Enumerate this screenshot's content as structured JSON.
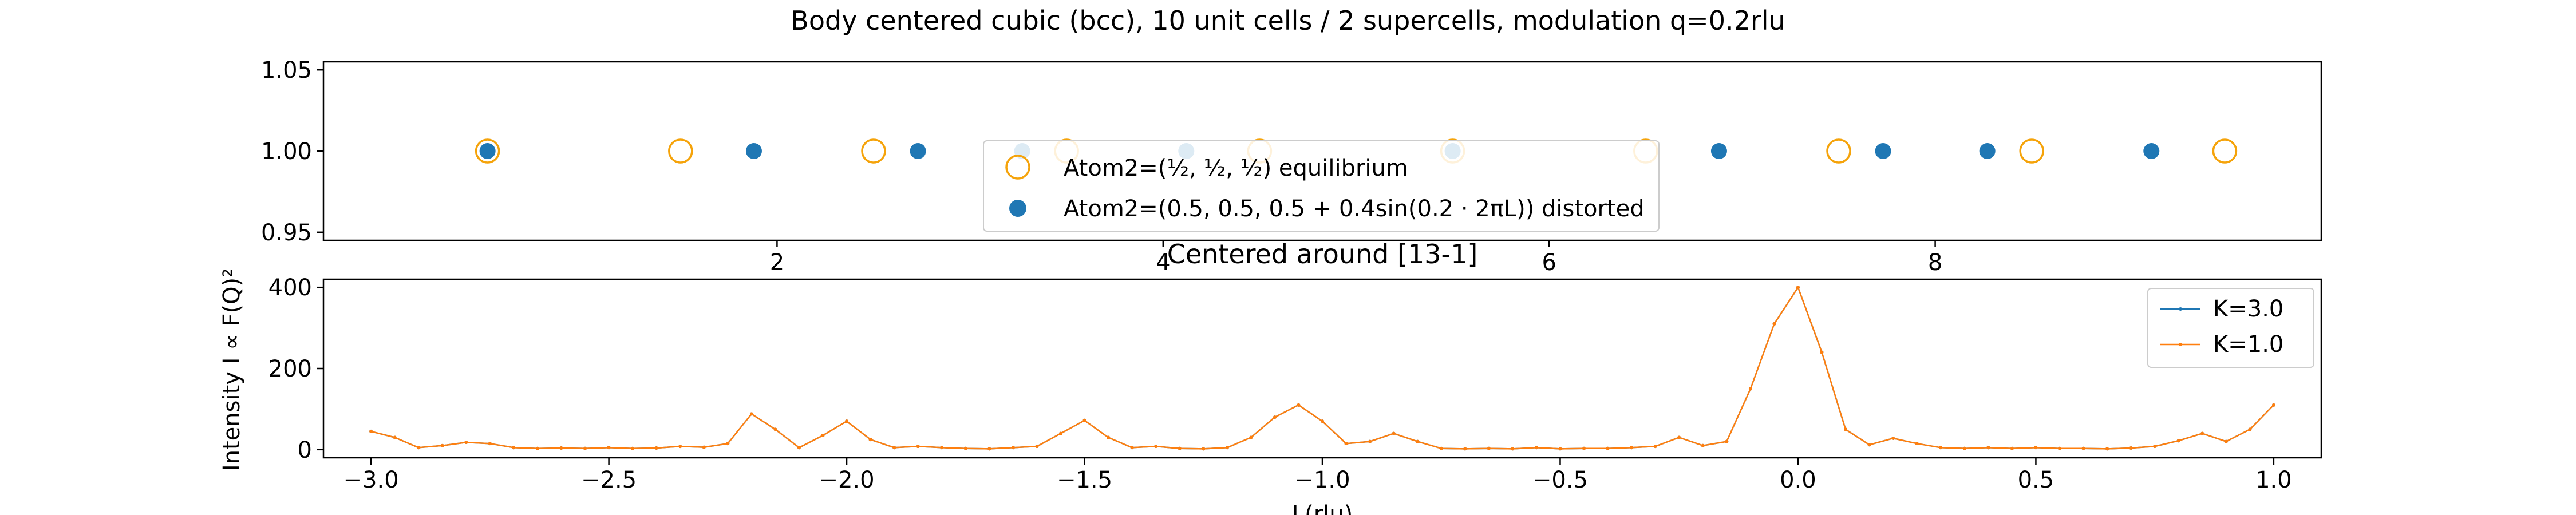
{
  "suptitle": "Body centered cubic (bcc), 10 unit cells / 2 supercells, modulation q=0.2rlu",
  "colors": {
    "orange": "#f5a30a",
    "blue": "#1f77b4",
    "line_blue": "#1f77b4",
    "line_orange": "#ff7f0e"
  },
  "chart_data": [
    {
      "type": "scatter",
      "title": "",
      "xlabel": "",
      "ylabel": "",
      "xlim": [
        -0.35,
        10.0
      ],
      "ylim": [
        0.945,
        1.055
      ],
      "xticks": [
        2,
        4,
        6,
        8
      ],
      "yticks": [
        "0.95",
        "1.00",
        "1.05"
      ],
      "legend_position": "lower-center",
      "series": [
        {
          "name_prefix": "Atom2=(",
          "name_suffix": ") equilibrium",
          "marker": "open-circle",
          "x": [
            0.5,
            1.5,
            2.5,
            3.5,
            4.5,
            5.5,
            6.5,
            7.5,
            8.5,
            9.5
          ],
          "y": [
            1,
            1,
            1,
            1,
            1,
            1,
            1,
            1,
            1,
            1
          ]
        },
        {
          "name": "Atom2=(0.5, 0.5, 0.5 + 0.4sin(0.2 · 2πL)) distorted",
          "marker": "filled-circle",
          "x": [
            0.5,
            1.88,
            2.73,
            3.27,
            4.12,
            5.5,
            6.88,
            7.73,
            8.27,
            9.12
          ],
          "y": [
            1,
            1,
            1,
            1,
            1,
            1,
            1,
            1,
            1,
            1
          ]
        }
      ]
    },
    {
      "type": "line",
      "title": "Centered around [13-1]",
      "xlabel": "L(rlu)",
      "ylabel": "Intensity I ∝ F(Q)²",
      "xlim": [
        -3.1,
        1.1
      ],
      "ylim": [
        -20,
        420
      ],
      "xticks": [
        "−3.0",
        "−2.5",
        "−2.0",
        "−1.5",
        "−1.0",
        "−0.5",
        "0.0",
        "0.5",
        "1.0"
      ],
      "xtick_values": [
        -3.0,
        -2.5,
        -2.0,
        -1.5,
        -1.0,
        -0.5,
        0.0,
        0.5,
        1.0
      ],
      "yticks": [
        "0",
        "200",
        "400"
      ],
      "ytick_values": [
        0,
        200,
        400
      ],
      "legend_position": "upper-right",
      "series": [
        {
          "name": "K=3.0",
          "x": [
            -3.0,
            -2.95,
            -2.9,
            -2.85,
            -2.8,
            -2.75,
            -2.7,
            -2.65,
            -2.6,
            -2.55,
            -2.5,
            -2.45,
            -2.4,
            -2.35,
            -2.3,
            -2.25,
            -2.2,
            -2.15,
            -2.1,
            -2.05,
            -2.0,
            -1.95,
            -1.9,
            -1.85,
            -1.8,
            -1.75,
            -1.7,
            -1.65,
            -1.6,
            -1.55,
            -1.5,
            -1.45,
            -1.4,
            -1.35,
            -1.3,
            -1.25,
            -1.2,
            -1.15,
            -1.1,
            -1.05,
            -1.0,
            -0.95,
            -0.9,
            -0.85,
            -0.8,
            -0.75,
            -0.7,
            -0.65,
            -0.6,
            -0.55,
            -0.5,
            -0.45,
            -0.4,
            -0.35,
            -0.3,
            -0.25,
            -0.2,
            -0.15,
            -0.1,
            -0.05,
            0.0,
            0.05,
            0.1,
            0.15,
            0.2,
            0.25,
            0.3,
            0.35,
            0.4,
            0.45,
            0.5,
            0.55,
            0.6,
            0.65,
            0.7,
            0.75,
            0.8,
            0.85,
            0.9,
            0.95,
            1.0
          ],
          "y": [
            45,
            30,
            5,
            10,
            18,
            15,
            5,
            3,
            4,
            3,
            5,
            3,
            4,
            8,
            6,
            15,
            88,
            50,
            5,
            35,
            70,
            25,
            5,
            8,
            5,
            3,
            2,
            5,
            8,
            40,
            72,
            30,
            5,
            8,
            3,
            2,
            5,
            30,
            80,
            110,
            70,
            15,
            20,
            40,
            20,
            3,
            2,
            3,
            2,
            5,
            2,
            3,
            3,
            5,
            8,
            30,
            10,
            20,
            150,
            310,
            400,
            240,
            50,
            12,
            28,
            15,
            5,
            3,
            5,
            3,
            5,
            3,
            3,
            2,
            4,
            8,
            22,
            40,
            20,
            50,
            110
          ]
        },
        {
          "name": "K=1.0",
          "x": [
            -3.0,
            -2.95,
            -2.9,
            -2.85,
            -2.8,
            -2.75,
            -2.7,
            -2.65,
            -2.6,
            -2.55,
            -2.5,
            -2.45,
            -2.4,
            -2.35,
            -2.3,
            -2.25,
            -2.2,
            -2.15,
            -2.1,
            -2.05,
            -2.0,
            -1.95,
            -1.9,
            -1.85,
            -1.8,
            -1.75,
            -1.7,
            -1.65,
            -1.6,
            -1.55,
            -1.5,
            -1.45,
            -1.4,
            -1.35,
            -1.3,
            -1.25,
            -1.2,
            -1.15,
            -1.1,
            -1.05,
            -1.0,
            -0.95,
            -0.9,
            -0.85,
            -0.8,
            -0.75,
            -0.7,
            -0.65,
            -0.6,
            -0.55,
            -0.5,
            -0.45,
            -0.4,
            -0.35,
            -0.3,
            -0.25,
            -0.2,
            -0.15,
            -0.1,
            -0.05,
            0.0,
            0.05,
            0.1,
            0.15,
            0.2,
            0.25,
            0.3,
            0.35,
            0.4,
            0.45,
            0.5,
            0.55,
            0.6,
            0.65,
            0.7,
            0.75,
            0.8,
            0.85,
            0.9,
            0.95,
            1.0
          ],
          "y": [
            45,
            30,
            5,
            10,
            18,
            15,
            5,
            3,
            4,
            3,
            5,
            3,
            4,
            8,
            6,
            15,
            88,
            50,
            5,
            35,
            70,
            25,
            5,
            8,
            5,
            3,
            2,
            5,
            8,
            40,
            72,
            30,
            5,
            8,
            3,
            2,
            5,
            30,
            80,
            110,
            70,
            15,
            20,
            40,
            20,
            3,
            2,
            3,
            2,
            5,
            2,
            3,
            3,
            5,
            8,
            30,
            10,
            20,
            150,
            310,
            400,
            240,
            50,
            12,
            28,
            15,
            5,
            3,
            5,
            3,
            5,
            3,
            3,
            2,
            4,
            8,
            22,
            40,
            20,
            50,
            110
          ]
        }
      ]
    }
  ]
}
